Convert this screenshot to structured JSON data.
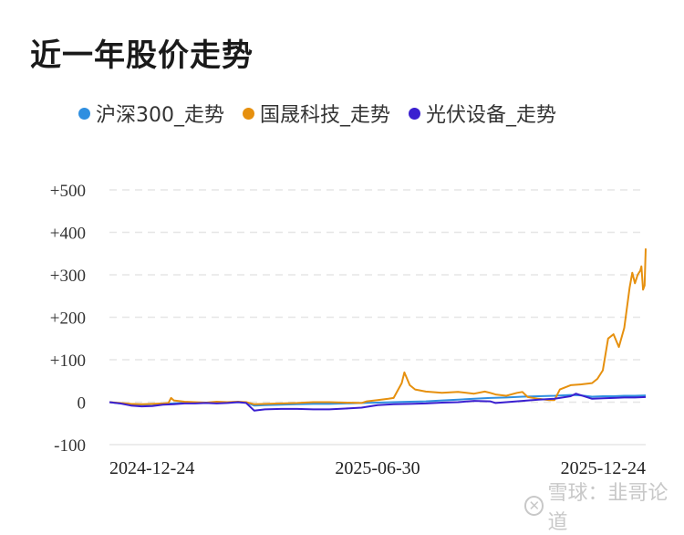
{
  "header": {
    "title": "近一年股价走势"
  },
  "legend": [
    {
      "label": "沪深300_走势",
      "color": "#2f8fe0"
    },
    {
      "label": "国晟科技_走势",
      "color": "#e6900e"
    },
    {
      "label": "光伏设备_走势",
      "color": "#3a1fd0"
    }
  ],
  "watermark": {
    "icon": "snowball-logo-icon",
    "text": "雪球：韭哥论道"
  },
  "chart_data": {
    "type": "line",
    "title": "近一年股价走势",
    "xlabel": "",
    "ylabel": "",
    "ylim": [
      -100,
      500
    ],
    "yticks": [
      "+500",
      "+400",
      "+300",
      "+200",
      "+100",
      "0",
      "-100"
    ],
    "ytick_values": [
      500,
      400,
      300,
      200,
      100,
      0,
      -100
    ],
    "xticks": [
      "2024-12-24",
      "2025-06-30",
      "2025-12-24"
    ],
    "xtick_positions": [
      0.0,
      0.5,
      1.0
    ],
    "grid": true,
    "legend_position": "top",
    "x_range": [
      0,
      1
    ],
    "series": [
      {
        "name": "沪深300_走势",
        "color": "#2f8fe0",
        "points": [
          [
            0.0,
            0
          ],
          [
            0.02,
            -3
          ],
          [
            0.04,
            -5
          ],
          [
            0.06,
            -6
          ],
          [
            0.08,
            -5
          ],
          [
            0.1,
            -4
          ],
          [
            0.12,
            -3
          ],
          [
            0.14,
            -2
          ],
          [
            0.16,
            -2
          ],
          [
            0.18,
            -1
          ],
          [
            0.2,
            -2
          ],
          [
            0.22,
            -1
          ],
          [
            0.24,
            0
          ],
          [
            0.255,
            -1
          ],
          [
            0.27,
            -8
          ],
          [
            0.29,
            -7
          ],
          [
            0.32,
            -6
          ],
          [
            0.35,
            -5
          ],
          [
            0.38,
            -4
          ],
          [
            0.41,
            -4
          ],
          [
            0.44,
            -3
          ],
          [
            0.47,
            -2
          ],
          [
            0.5,
            -1
          ],
          [
            0.53,
            0
          ],
          [
            0.56,
            1
          ],
          [
            0.59,
            2
          ],
          [
            0.62,
            4
          ],
          [
            0.65,
            6
          ],
          [
            0.68,
            8
          ],
          [
            0.71,
            10
          ],
          [
            0.74,
            11
          ],
          [
            0.77,
            13
          ],
          [
            0.8,
            14
          ],
          [
            0.83,
            15
          ],
          [
            0.86,
            17
          ],
          [
            0.88,
            16
          ],
          [
            0.9,
            13
          ],
          [
            0.92,
            14
          ],
          [
            0.94,
            14
          ],
          [
            0.96,
            15
          ],
          [
            0.98,
            15
          ],
          [
            1.0,
            16
          ]
        ]
      },
      {
        "name": "国晟科技_走势",
        "color": "#e6900e",
        "points": [
          [
            0.0,
            0
          ],
          [
            0.02,
            -2
          ],
          [
            0.04,
            -4
          ],
          [
            0.06,
            -5
          ],
          [
            0.08,
            -4
          ],
          [
            0.1,
            -3
          ],
          [
            0.11,
            -2
          ],
          [
            0.115,
            10
          ],
          [
            0.12,
            4
          ],
          [
            0.14,
            1
          ],
          [
            0.16,
            0
          ],
          [
            0.18,
            -1
          ],
          [
            0.2,
            1
          ],
          [
            0.22,
            0
          ],
          [
            0.24,
            1
          ],
          [
            0.255,
            0
          ],
          [
            0.27,
            -5
          ],
          [
            0.29,
            -4
          ],
          [
            0.32,
            -3
          ],
          [
            0.35,
            -2
          ],
          [
            0.38,
            0
          ],
          [
            0.41,
            0
          ],
          [
            0.44,
            -1
          ],
          [
            0.47,
            -2
          ],
          [
            0.48,
            2
          ],
          [
            0.5,
            5
          ],
          [
            0.52,
            8
          ],
          [
            0.53,
            10
          ],
          [
            0.545,
            45
          ],
          [
            0.55,
            70
          ],
          [
            0.56,
            40
          ],
          [
            0.57,
            30
          ],
          [
            0.59,
            25
          ],
          [
            0.62,
            22
          ],
          [
            0.65,
            24
          ],
          [
            0.68,
            20
          ],
          [
            0.7,
            25
          ],
          [
            0.71,
            22
          ],
          [
            0.72,
            18
          ],
          [
            0.74,
            15
          ],
          [
            0.76,
            22
          ],
          [
            0.77,
            24
          ],
          [
            0.78,
            12
          ],
          [
            0.8,
            8
          ],
          [
            0.82,
            5
          ],
          [
            0.83,
            5
          ],
          [
            0.84,
            30
          ],
          [
            0.86,
            40
          ],
          [
            0.88,
            42
          ],
          [
            0.9,
            45
          ],
          [
            0.91,
            55
          ],
          [
            0.92,
            75
          ],
          [
            0.93,
            150
          ],
          [
            0.94,
            160
          ],
          [
            0.95,
            130
          ],
          [
            0.96,
            175
          ],
          [
            0.97,
            270
          ],
          [
            0.975,
            305
          ],
          [
            0.98,
            280
          ],
          [
            0.985,
            300
          ],
          [
            0.99,
            310
          ],
          [
            0.992,
            320
          ],
          [
            0.995,
            265
          ],
          [
            0.998,
            275
          ],
          [
            1.0,
            362
          ]
        ]
      },
      {
        "name": "光伏设备_走势",
        "color": "#3a1fd0",
        "points": [
          [
            0.0,
            0
          ],
          [
            0.02,
            -3
          ],
          [
            0.04,
            -8
          ],
          [
            0.06,
            -10
          ],
          [
            0.08,
            -9
          ],
          [
            0.1,
            -6
          ],
          [
            0.12,
            -5
          ],
          [
            0.14,
            -3
          ],
          [
            0.16,
            -3
          ],
          [
            0.18,
            -2
          ],
          [
            0.2,
            -3
          ],
          [
            0.22,
            -2
          ],
          [
            0.24,
            0
          ],
          [
            0.255,
            -2
          ],
          [
            0.27,
            -20
          ],
          [
            0.29,
            -17
          ],
          [
            0.32,
            -16
          ],
          [
            0.35,
            -16
          ],
          [
            0.38,
            -17
          ],
          [
            0.41,
            -17
          ],
          [
            0.44,
            -15
          ],
          [
            0.47,
            -13
          ],
          [
            0.5,
            -7
          ],
          [
            0.53,
            -5
          ],
          [
            0.56,
            -4
          ],
          [
            0.59,
            -3
          ],
          [
            0.62,
            -1
          ],
          [
            0.65,
            0
          ],
          [
            0.68,
            3
          ],
          [
            0.71,
            2
          ],
          [
            0.72,
            -2
          ],
          [
            0.74,
            0
          ],
          [
            0.77,
            3
          ],
          [
            0.8,
            6
          ],
          [
            0.83,
            8
          ],
          [
            0.86,
            14
          ],
          [
            0.87,
            20
          ],
          [
            0.88,
            16
          ],
          [
            0.9,
            8
          ],
          [
            0.92,
            9
          ],
          [
            0.94,
            10
          ],
          [
            0.96,
            11
          ],
          [
            0.98,
            11
          ],
          [
            1.0,
            12
          ]
        ]
      }
    ]
  }
}
